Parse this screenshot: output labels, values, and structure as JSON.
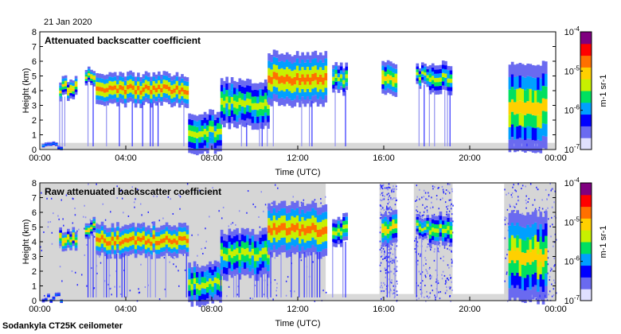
{
  "header": {
    "date": "21 Jan 2020"
  },
  "footer": {
    "instrument": "Sodankyla CT25K ceilometer"
  },
  "colorbar": {
    "labels": [
      "10-4",
      "10-5",
      "10-6",
      "10-7"
    ],
    "unit_label": "m-1 sr-1",
    "colors": [
      "#e0e0ff",
      "#6a6af0",
      "#0000ff",
      "#00a0ff",
      "#00e060",
      "#c8f000",
      "#ffd000",
      "#ff7000",
      "#ff0000",
      "#800080"
    ]
  },
  "chart_data": [
    {
      "type": "heatmap",
      "title": "Attenuated backscatter coefficient",
      "xlabel": "Time (UTC)",
      "ylabel": "Height (km)",
      "xlim": [
        0,
        24
      ],
      "ylim": [
        0,
        8
      ],
      "xticks": [
        "00:00",
        "04:00",
        "08:00",
        "12:00",
        "16:00",
        "20:00",
        "00:00"
      ],
      "yticks": [
        "0",
        "1",
        "2",
        "3",
        "4",
        "5",
        "6",
        "7",
        "8"
      ],
      "colorbar_range": [
        "1e-7",
        "1e-4"
      ],
      "layers": [
        {
          "t0": 0.1,
          "t1": 1.0,
          "h0": 0.1,
          "h1": 0.3,
          "level": 3
        },
        {
          "t0": 0.9,
          "t1": 1.7,
          "h0": 3.6,
          "h1": 4.7,
          "level": 6
        },
        {
          "t0": 2.1,
          "t1": 2.5,
          "h0": 4.5,
          "h1": 5.4,
          "level": 6
        },
        {
          "t0": 2.6,
          "t1": 6.9,
          "h0": 3.2,
          "h1": 5.0,
          "level": 7
        },
        {
          "t0": 6.9,
          "t1": 8.4,
          "h0": 0.0,
          "h1": 2.3,
          "level": 5
        },
        {
          "t0": 8.4,
          "t1": 10.6,
          "h0": 1.8,
          "h1": 4.5,
          "level": 5
        },
        {
          "t0": 10.6,
          "t1": 13.3,
          "h0": 3.3,
          "h1": 6.3,
          "level": 7
        },
        {
          "t0": 13.6,
          "t1": 14.2,
          "h0": 4.0,
          "h1": 5.6,
          "level": 5
        },
        {
          "t0": 15.9,
          "t1": 16.6,
          "h0": 3.9,
          "h1": 5.8,
          "level": 6
        },
        {
          "t0": 17.5,
          "t1": 18.0,
          "h0": 4.4,
          "h1": 5.6,
          "level": 5
        },
        {
          "t0": 18.1,
          "t1": 19.1,
          "h0": 4.0,
          "h1": 5.7,
          "level": 5
        },
        {
          "t0": 21.8,
          "t1": 23.5,
          "h0": 0.4,
          "h1": 5.5,
          "level": 6
        }
      ]
    },
    {
      "type": "heatmap",
      "title": "Raw attenuated backscatter coefficient",
      "xlabel": "Time (UTC)",
      "ylabel": "Height (km)",
      "xlim": [
        0,
        24
      ],
      "ylim": [
        0,
        8
      ],
      "xticks": [
        "00:00",
        "04:00",
        "08:00",
        "12:00",
        "16:00",
        "20:00",
        "00:00"
      ],
      "yticks": [
        "0",
        "1",
        "2",
        "3",
        "4",
        "5",
        "6",
        "7",
        "8"
      ],
      "colorbar_range": [
        "1e-7",
        "1e-4"
      ],
      "layers": [
        {
          "t0": 0.1,
          "t1": 1.0,
          "h0": 0.1,
          "h1": 0.3,
          "level": 3
        },
        {
          "t0": 0.9,
          "t1": 1.7,
          "h0": 3.6,
          "h1": 4.7,
          "level": 6
        },
        {
          "t0": 2.1,
          "t1": 2.5,
          "h0": 4.5,
          "h1": 5.4,
          "level": 6
        },
        {
          "t0": 2.6,
          "t1": 6.9,
          "h0": 3.2,
          "h1": 5.0,
          "level": 7
        },
        {
          "t0": 6.9,
          "t1": 8.4,
          "h0": 0.0,
          "h1": 2.3,
          "level": 5
        },
        {
          "t0": 8.4,
          "t1": 10.6,
          "h0": 1.8,
          "h1": 4.5,
          "level": 5
        },
        {
          "t0": 10.6,
          "t1": 13.3,
          "h0": 3.3,
          "h1": 6.3,
          "level": 7
        },
        {
          "t0": 13.6,
          "t1": 14.2,
          "h0": 4.0,
          "h1": 5.6,
          "level": 5
        },
        {
          "t0": 15.9,
          "t1": 16.6,
          "h0": 3.9,
          "h1": 5.8,
          "level": 6
        },
        {
          "t0": 17.5,
          "t1": 18.0,
          "h0": 4.4,
          "h1": 5.6,
          "level": 5
        },
        {
          "t0": 18.1,
          "t1": 19.1,
          "h0": 4.0,
          "h1": 5.7,
          "level": 5
        },
        {
          "t0": 21.8,
          "t1": 23.5,
          "h0": 0.4,
          "h1": 5.5,
          "level": 6
        }
      ],
      "noise_blocks": [
        {
          "t0": 0.0,
          "t1": 13.3
        },
        {
          "t0": 15.8,
          "t1": 16.6
        },
        {
          "t0": 17.4,
          "t1": 19.2
        },
        {
          "t0": 21.6,
          "t1": 24.0
        }
      ]
    }
  ]
}
